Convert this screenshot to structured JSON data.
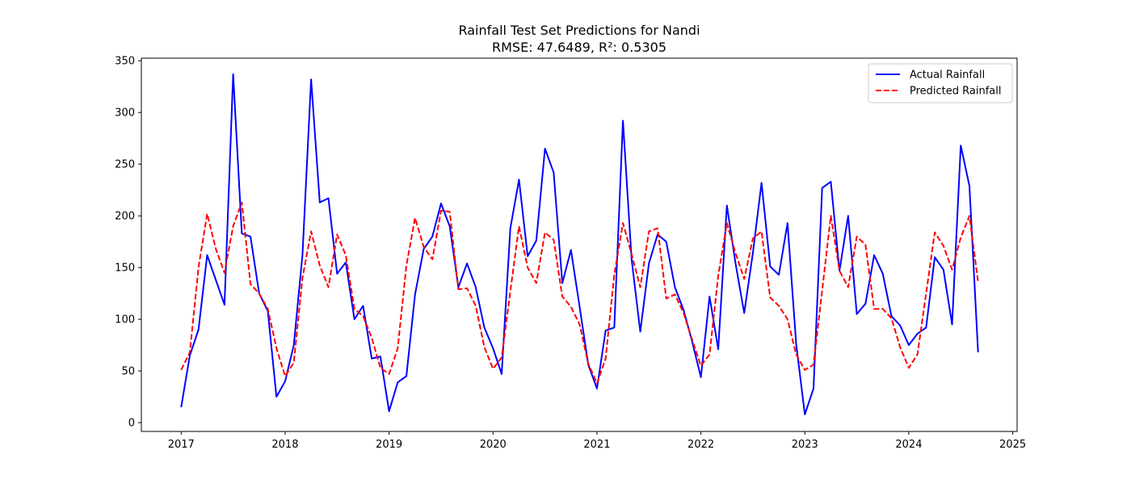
{
  "chart_data": {
    "type": "line",
    "title": "Rainfall Test Set Predictions for Nandi",
    "subtitle": "RMSE: 47.6489, R²: 0.5305",
    "xlabel": "",
    "ylabel": "",
    "xlim": [
      2016.617,
      2025.042
    ],
    "ylim": [
      -8.5,
      352.5
    ],
    "xticks": [
      2017,
      2018,
      2019,
      2020,
      2021,
      2022,
      2023,
      2024,
      2025
    ],
    "xtick_labels": [
      "2017",
      "2018",
      "2019",
      "2020",
      "2021",
      "2022",
      "2023",
      "2024",
      "2025"
    ],
    "yticks": [
      0,
      50,
      100,
      150,
      200,
      250,
      300,
      350
    ],
    "ytick_labels": [
      "0",
      "50",
      "100",
      "150",
      "200",
      "250",
      "300",
      "350"
    ],
    "grid": false,
    "legend_position": "top-right",
    "x_start": 2017,
    "x_step_months": 1,
    "series": [
      {
        "name": "Actual Rainfall",
        "color": "#0000ff",
        "dash": "solid",
        "values": [
          15,
          65,
          90,
          162,
          138,
          114,
          337,
          183,
          180,
          125,
          108,
          25,
          40,
          75,
          162,
          332,
          213,
          217,
          144,
          155,
          100,
          113,
          62,
          64,
          11,
          39,
          45,
          124,
          168,
          180,
          212,
          190,
          131,
          154,
          131,
          92,
          72,
          47,
          188,
          235,
          161,
          176,
          265,
          242,
          135,
          167,
          112,
          56,
          33,
          89,
          92,
          292,
          158,
          88,
          154,
          182,
          175,
          131,
          109,
          78,
          44,
          122,
          71,
          210,
          154,
          106,
          164,
          232,
          151,
          143,
          193,
          76,
          8,
          33,
          227,
          233,
          147,
          200,
          105,
          115,
          162,
          144,
          103,
          94,
          75,
          86,
          92,
          160,
          148,
          95,
          268,
          229,
          68
        ]
      },
      {
        "name": "Predicted Rainfall",
        "color": "#ff0000",
        "dash": "dashed",
        "values": [
          51,
          68,
          150,
          202,
          168,
          145,
          190,
          213,
          134,
          125,
          110,
          72,
          45,
          58,
          140,
          185,
          152,
          131,
          182,
          162,
          110,
          103,
          82,
          53,
          47,
          72,
          152,
          198,
          170,
          158,
          205,
          204,
          129,
          130,
          113,
          73,
          52,
          63,
          127,
          190,
          150,
          135,
          184,
          177,
          122,
          112,
          95,
          57,
          38,
          62,
          143,
          193,
          163,
          131,
          185,
          188,
          120,
          124,
          106,
          80,
          55,
          66,
          142,
          193,
          164,
          139,
          178,
          185,
          121,
          113,
          100,
          66,
          51,
          56,
          128,
          200,
          147,
          131,
          180,
          172,
          110,
          110,
          101,
          73,
          53,
          66,
          125,
          184,
          171,
          148,
          179,
          200,
          136
        ]
      }
    ]
  }
}
